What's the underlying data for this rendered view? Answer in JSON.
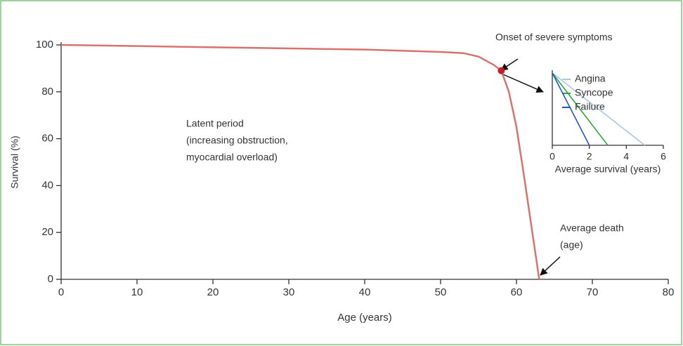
{
  "chart_data": [
    {
      "type": "line",
      "xlabel": "Age (years)",
      "ylabel": "Survival (%)",
      "xlim": [
        0,
        80
      ],
      "xticks": [
        0,
        10,
        20,
        30,
        40,
        50,
        60,
        70,
        80
      ],
      "ylim": [
        0,
        100
      ],
      "yticks": [
        0,
        20,
        40,
        60,
        80,
        100
      ],
      "x": [
        0,
        10,
        20,
        30,
        40,
        50,
        53,
        55,
        57,
        58,
        59,
        60,
        61,
        62,
        63
      ],
      "values": [
        100,
        99.5,
        99,
        98.5,
        98,
        97,
        96.5,
        95,
        91.5,
        89,
        80,
        65,
        44,
        22,
        0
      ],
      "color": "#d9726c",
      "highlight": {
        "x": 58,
        "y": 89,
        "color": "#c41e2a"
      },
      "annotations": [
        {
          "lines": [
            "Onset of severe symptoms"
          ]
        },
        {
          "lines": [
            "Latent period",
            "(increasing obstruction,",
            "myocardial overload)"
          ]
        },
        {
          "lines": [
            "Average death",
            "(age)"
          ]
        }
      ]
    },
    {
      "type": "line",
      "xlabel": "Average survival (years)",
      "xlim": [
        0,
        6
      ],
      "xticks": [
        0,
        2,
        4,
        6
      ],
      "ylim": [
        0,
        100
      ],
      "series": [
        {
          "name": "Angina",
          "color": "#a9c9df",
          "x": [
            0,
            5
          ],
          "values": [
            100,
            0
          ]
        },
        {
          "name": "Syncope",
          "color": "#2ea63c",
          "x": [
            0,
            3
          ],
          "values": [
            100,
            0
          ]
        },
        {
          "name": "Failure",
          "color": "#2457c9",
          "x": [
            0,
            2
          ],
          "values": [
            100,
            0
          ]
        }
      ]
    }
  ]
}
